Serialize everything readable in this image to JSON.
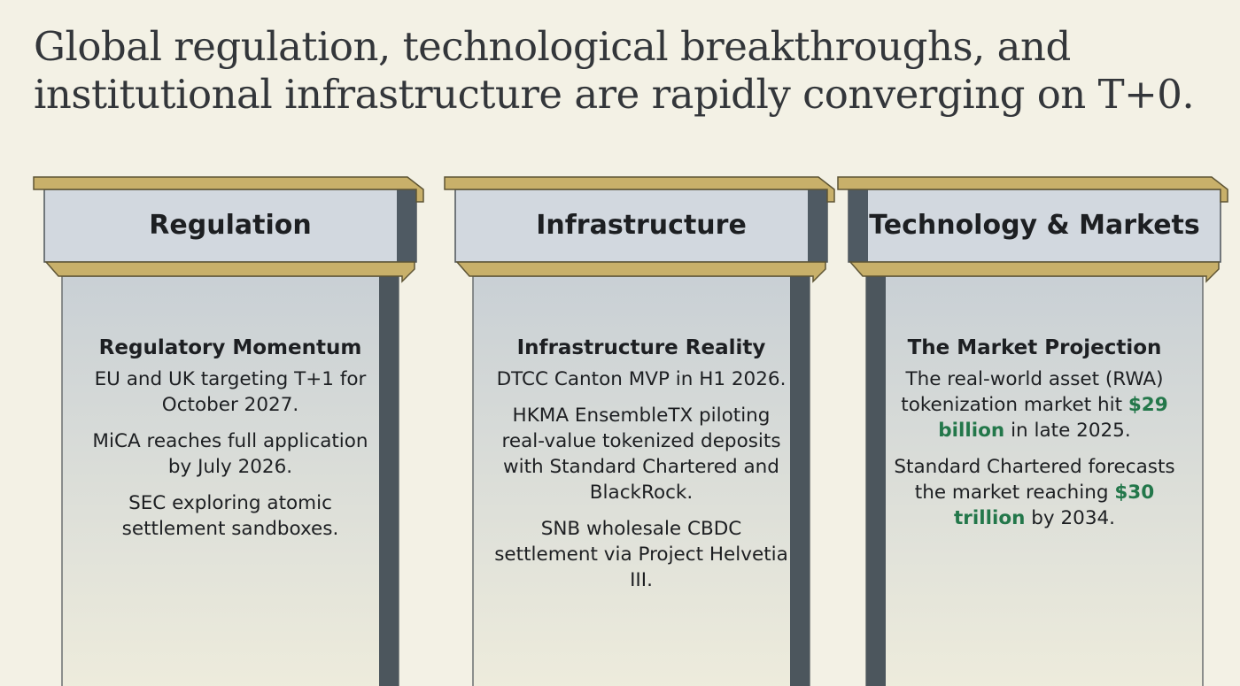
{
  "title": "Global regulation, technological breakthroughs, and institutional infrastructure are rapidly converging on T+0.",
  "pillars": [
    {
      "header": "Regulation",
      "subtitle": "Regulatory Momentum",
      "paragraphs": [
        [
          {
            "text": "EU and UK targeting T+1 for October 2027."
          }
        ],
        [
          {
            "text": "MiCA reaches full application by July 2026."
          }
        ],
        [
          {
            "text": "SEC exploring atomic settlement sandboxes."
          }
        ]
      ]
    },
    {
      "header": "Infrastructure",
      "subtitle": "Infrastructure Reality",
      "paragraphs": [
        [
          {
            "text": "DTCC Canton MVP in H1 2026."
          }
        ],
        [
          {
            "text": "HKMA EnsembleTX piloting real-value tokenized deposits with Standard Chartered and BlackRock."
          }
        ],
        [
          {
            "text": "SNB wholesale CBDC settlement via Project Helvetia III."
          }
        ]
      ]
    },
    {
      "header": "Technology & Markets",
      "subtitle": "The Market Projection",
      "paragraphs": [
        [
          {
            "text": "The real-world asset (RWA) tokenization market hit "
          },
          {
            "text": "$29 billion",
            "color": "#23774a"
          },
          {
            "text": " in late 2025."
          }
        ],
        [
          {
            "text": "Standard Chartered forecasts the market reaching "
          },
          {
            "text": "$30 trillion",
            "color": "#23774a"
          },
          {
            "text": " by 2034."
          }
        ]
      ]
    }
  ]
}
